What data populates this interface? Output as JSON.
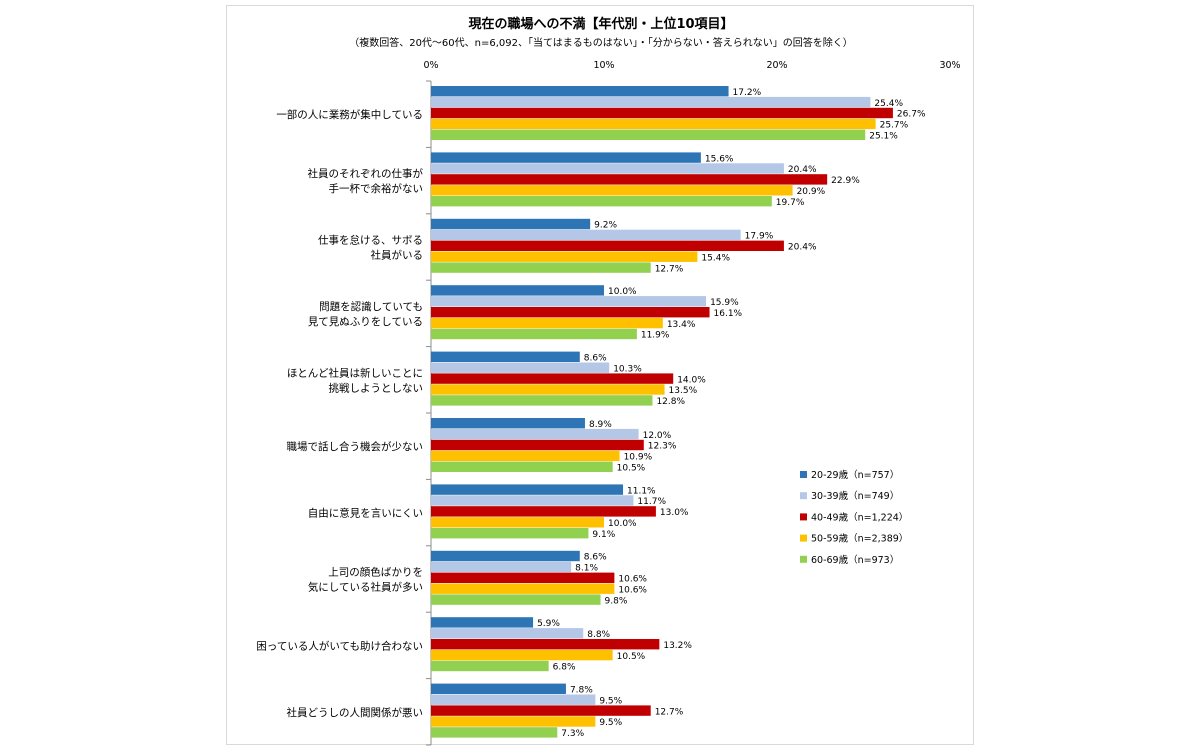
{
  "chart_data": {
    "type": "bar",
    "orientation": "horizontal",
    "title": "現在の職場への不満【年代別・上位10項目】",
    "subtitle": "（複数回答、20代～60代、n=6,092、「当てはまるものはない」・「分からない・答えられない」の回答を除く）",
    "xlim": [
      0,
      30
    ],
    "xticks": [
      "0%",
      "10%",
      "20%",
      "30%"
    ],
    "categories": [
      [
        "一部の人に業務が集中している"
      ],
      [
        "社員のそれぞれの仕事が",
        "手一杯で余裕がない"
      ],
      [
        "仕事を怠ける、サボる",
        "社員がいる"
      ],
      [
        "問題を認識していても",
        "見て見ぬふりをしている"
      ],
      [
        "ほとんど社員は新しいことに",
        "挑戦しようとしない"
      ],
      [
        "職場で話し合う機会が少ない"
      ],
      [
        "自由に意見を言いにくい"
      ],
      [
        "上司の顔色ばかりを",
        "気にしている社員が多い"
      ],
      [
        "困っている人がいても助け合わない"
      ],
      [
        "社員どうしの人間関係が悪い"
      ]
    ],
    "series": [
      {
        "name": "20-29歳（n=757）",
        "color": "#2e75b6",
        "values": [
          17.2,
          15.6,
          9.2,
          10.0,
          8.6,
          8.9,
          11.1,
          8.6,
          5.9,
          7.8
        ]
      },
      {
        "name": "30-39歳（n=749）",
        "color": "#b4c7e7",
        "values": [
          25.4,
          20.4,
          17.9,
          15.9,
          10.3,
          12.0,
          11.7,
          8.1,
          8.8,
          9.5
        ]
      },
      {
        "name": "40-49歳（n=1,224）",
        "color": "#c00000",
        "values": [
          26.7,
          22.9,
          20.4,
          16.1,
          14.0,
          12.3,
          13.0,
          10.6,
          13.2,
          12.7
        ]
      },
      {
        "name": "50-59歳（n=2,389）",
        "color": "#ffc000",
        "values": [
          25.7,
          20.9,
          15.4,
          13.4,
          13.5,
          10.9,
          10.0,
          10.6,
          10.5,
          9.5
        ]
      },
      {
        "name": "60-69歳（n=973）",
        "color": "#92d050",
        "values": [
          25.1,
          19.7,
          12.7,
          11.9,
          12.8,
          10.5,
          9.1,
          9.8,
          6.8,
          7.3
        ]
      }
    ],
    "value_labels": [
      [
        "17.2%",
        "15.6%",
        "9.2%",
        "10.0%",
        "8.6%",
        "8.9%",
        "11.1%",
        "8.6%",
        "5.9%",
        "7.8%"
      ],
      [
        "25.4%",
        "20.4%",
        "17.9%",
        "15.9%",
        "10.3%",
        "12.0%",
        "11.7%",
        "8.1%",
        "8.8%",
        "9.5%"
      ],
      [
        "26.7%",
        "22.9%",
        "20.4%",
        "16.1%",
        "14.0%",
        "12.3%",
        "13.0%",
        "10.6%",
        "13.2%",
        "12.7%"
      ],
      [
        "25.7%",
        "20.9%",
        "15.4%",
        "13.4%",
        "13.5%",
        "10.9%",
        "10.0%",
        "10.6%",
        "10.5%",
        "9.5%"
      ],
      [
        "25.1%",
        "19.7%",
        "12.7%",
        "11.9%",
        "12.8%",
        "10.5%",
        "9.1%",
        "9.8%",
        "6.8%",
        "7.3%"
      ]
    ],
    "legend_position": "right",
    "grid": false
  }
}
